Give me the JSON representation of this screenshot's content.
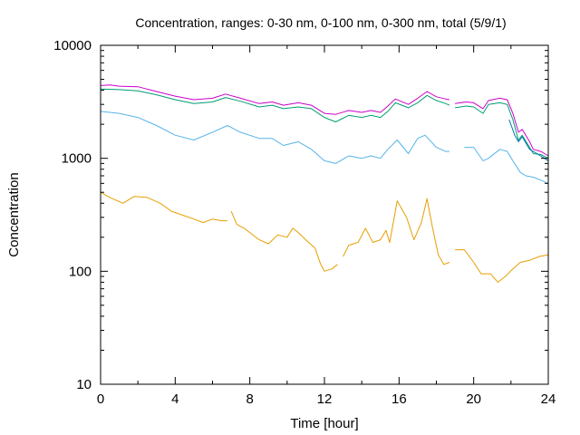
{
  "chart_data": {
    "type": "line",
    "title": "Concentration, ranges: 0-30 nm, 0-100 nm, 0-300 nm, total (5/9/1)",
    "xlabel": "Time [hour]",
    "ylabel": "Concentration",
    "xlim": [
      0,
      24
    ],
    "ylim": [
      10,
      10000
    ],
    "yscale": "log",
    "grid": false,
    "x_ticks": [
      "0",
      "4",
      "8",
      "12",
      "16",
      "20",
      "24"
    ],
    "y_ticks": [
      "10",
      "100",
      "1000",
      "10000"
    ],
    "series": [
      {
        "color": "#cc00cc",
        "segments": [
          [
            [
              0,
              4400
            ],
            [
              0.5,
              4450
            ],
            [
              1,
              4350
            ],
            [
              2,
              4300
            ],
            [
              3,
              3900
            ],
            [
              4,
              3550
            ],
            [
              5,
              3300
            ],
            [
              6,
              3400
            ],
            [
              6.7,
              3700
            ],
            [
              7.5,
              3400
            ],
            [
              8.5,
              3050
            ],
            [
              9.2,
              3150
            ],
            [
              9.8,
              2950
            ],
            [
              10.6,
              3100
            ],
            [
              11.3,
              2950
            ],
            [
              12,
              2500
            ],
            [
              12.6,
              2450
            ],
            [
              13.3,
              2650
            ],
            [
              14,
              2550
            ],
            [
              14.5,
              2650
            ],
            [
              15,
              2550
            ],
            [
              15.4,
              2900
            ],
            [
              15.8,
              3350
            ],
            [
              16.5,
              3000
            ],
            [
              17,
              3400
            ],
            [
              17.5,
              3900
            ],
            [
              18,
              3500
            ],
            [
              18.5,
              3350
            ],
            [
              18.7,
              3300
            ]
          ],
          [
            [
              19,
              3050
            ],
            [
              19.6,
              3150
            ],
            [
              20,
              3100
            ],
            [
              20.5,
              2750
            ],
            [
              20.8,
              3250
            ],
            [
              21.4,
              3400
            ],
            [
              21.8,
              3300
            ],
            [
              22.1,
              2500
            ],
            [
              22.4,
              1700
            ],
            [
              22.6,
              1800
            ],
            [
              23,
              1400
            ],
            [
              23.2,
              1200
            ],
            [
              23.6,
              1150
            ],
            [
              24,
              1050
            ]
          ]
        ]
      },
      {
        "color": "#009e73",
        "segments": [
          [
            [
              0,
              4100
            ],
            [
              1,
              4050
            ],
            [
              2,
              3950
            ],
            [
              3,
              3650
            ],
            [
              4,
              3300
            ],
            [
              5,
              3050
            ],
            [
              6,
              3150
            ],
            [
              6.7,
              3450
            ],
            [
              7.5,
              3200
            ],
            [
              8.5,
              2850
            ],
            [
              9.2,
              2950
            ],
            [
              9.8,
              2750
            ],
            [
              10.6,
              2850
            ],
            [
              11.3,
              2750
            ],
            [
              12,
              2300
            ],
            [
              12.6,
              2100
            ],
            [
              13.3,
              2400
            ],
            [
              14,
              2300
            ],
            [
              14.5,
              2400
            ],
            [
              15,
              2300
            ],
            [
              15.4,
              2600
            ],
            [
              15.8,
              3100
            ],
            [
              16.5,
              2800
            ],
            [
              17,
              3100
            ],
            [
              17.5,
              3600
            ],
            [
              18,
              3250
            ],
            [
              18.5,
              3050
            ],
            [
              18.7,
              2950
            ]
          ],
          [
            [
              19,
              2800
            ],
            [
              19.6,
              2900
            ],
            [
              20,
              2850
            ],
            [
              20.5,
              2500
            ],
            [
              20.8,
              3000
            ],
            [
              21.4,
              3100
            ],
            [
              21.8,
              3000
            ],
            [
              22.1,
              2200
            ],
            [
              22.4,
              1450
            ],
            [
              22.6,
              1600
            ],
            [
              23,
              1250
            ],
            [
              23.2,
              1100
            ],
            [
              23.6,
              1080
            ],
            [
              24,
              1000
            ]
          ]
        ]
      },
      {
        "color": "#0072b2",
        "segments": [
          [
            [
              21.9,
              2200
            ],
            [
              22.2,
              1600
            ],
            [
              22.4,
              1400
            ],
            [
              22.6,
              1550
            ],
            [
              23,
              1200
            ],
            [
              23.4,
              1100
            ],
            [
              24,
              950
            ]
          ]
        ]
      },
      {
        "color": "#56b4e9",
        "segments": [
          [
            [
              0,
              2600
            ],
            [
              1,
              2500
            ],
            [
              2,
              2300
            ],
            [
              3,
              1950
            ],
            [
              4,
              1600
            ],
            [
              5,
              1450
            ],
            [
              6,
              1700
            ],
            [
              6.8,
              1950
            ],
            [
              7.5,
              1700
            ],
            [
              8.5,
              1500
            ],
            [
              9.2,
              1500
            ],
            [
              9.8,
              1300
            ],
            [
              10.6,
              1400
            ],
            [
              11.3,
              1200
            ],
            [
              12,
              950
            ],
            [
              12.6,
              900
            ],
            [
              13.3,
              1050
            ],
            [
              14,
              1000
            ],
            [
              14.5,
              1050
            ],
            [
              15,
              1000
            ],
            [
              15.4,
              1200
            ],
            [
              15.9,
              1450
            ],
            [
              16.5,
              1100
            ],
            [
              17,
              1500
            ],
            [
              17.4,
              1600
            ],
            [
              18,
              1250
            ],
            [
              18.5,
              1150
            ],
            [
              18.7,
              1150
            ]
          ],
          [
            [
              19.5,
              1250
            ],
            [
              20,
              1250
            ],
            [
              20.5,
              950
            ],
            [
              20.8,
              1000
            ],
            [
              21.4,
              1200
            ],
            [
              21.8,
              1150
            ],
            [
              22.1,
              950
            ],
            [
              22.5,
              750
            ],
            [
              22.8,
              700
            ],
            [
              23.2,
              680
            ],
            [
              23.6,
              640
            ],
            [
              24,
              600
            ]
          ]
        ]
      },
      {
        "color": "#e69f00",
        "segments": [
          [
            [
              0,
              500
            ],
            [
              0.5,
              450
            ],
            [
              1.2,
              400
            ],
            [
              1.8,
              460
            ],
            [
              2.5,
              450
            ],
            [
              3.2,
              400
            ],
            [
              3.8,
              340
            ],
            [
              4.5,
              310
            ],
            [
              5,
              290
            ],
            [
              5.5,
              270
            ],
            [
              6,
              290
            ],
            [
              6.5,
              280
            ],
            [
              6.8,
              280
            ]
          ],
          [
            [
              7,
              340
            ],
            [
              7.3,
              260
            ],
            [
              7.7,
              240
            ],
            [
              8,
              220
            ],
            [
              8.5,
              190
            ],
            [
              9,
              175
            ],
            [
              9.5,
              210
            ],
            [
              10,
              200
            ],
            [
              10.3,
              240
            ],
            [
              10.6,
              220
            ],
            [
              11,
              190
            ],
            [
              11.5,
              160
            ],
            [
              11.8,
              115
            ],
            [
              12,
              100
            ],
            [
              12.4,
              105
            ],
            [
              12.7,
              115
            ]
          ],
          [
            [
              13,
              135
            ],
            [
              13.3,
              170
            ],
            [
              13.8,
              180
            ],
            [
              14.2,
              240
            ],
            [
              14.6,
              180
            ],
            [
              15,
              190
            ],
            [
              15.3,
              230
            ],
            [
              15.5,
              180
            ],
            [
              15.9,
              420
            ],
            [
              16.4,
              300
            ],
            [
              16.8,
              190
            ],
            [
              17.2,
              270
            ],
            [
              17.5,
              440
            ],
            [
              17.8,
              240
            ],
            [
              18.1,
              140
            ],
            [
              18.4,
              115
            ],
            [
              18.7,
              120
            ]
          ],
          [
            [
              19,
              155
            ],
            [
              19.5,
              155
            ],
            [
              20,
              120
            ],
            [
              20.4,
              95
            ],
            [
              20.9,
              95
            ],
            [
              21.3,
              80
            ],
            [
              21.7,
              90
            ],
            [
              22.1,
              105
            ],
            [
              22.5,
              120
            ],
            [
              23,
              125
            ],
            [
              23.5,
              135
            ],
            [
              24,
              140
            ]
          ]
        ]
      }
    ]
  }
}
